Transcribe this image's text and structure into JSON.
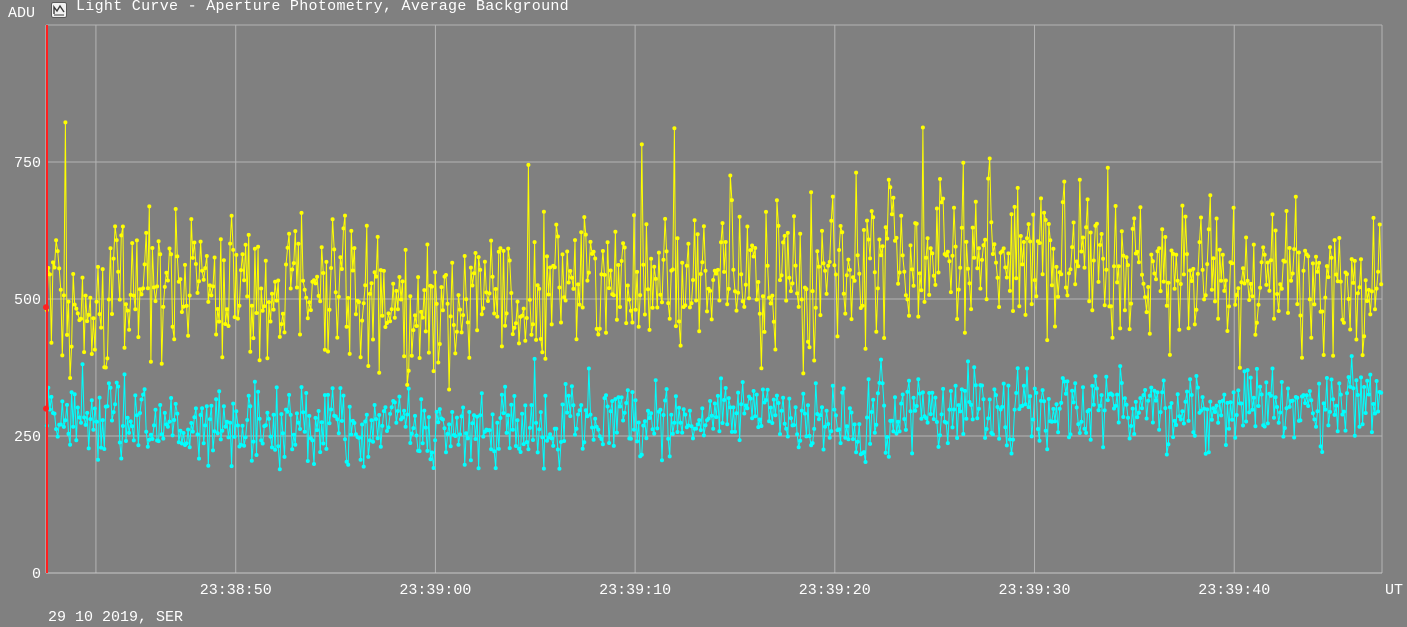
{
  "window": {
    "title": "Light Curve - Aperture Photometry, Average Background",
    "icon": "chart-window-icon"
  },
  "footer": {
    "date_label": "29 10 2019, SER"
  },
  "chart_data": {
    "type": "line",
    "title": "Light Curve - Aperture Photometry, Average Background",
    "ylabel": "ADU",
    "xlabel": "UT",
    "ylim": [
      0,
      1000
    ],
    "xlim": [
      "23:38:40.5",
      "23:39:47.4"
    ],
    "y_ticks": [
      0,
      250,
      500,
      750
    ],
    "y_tick_labels": [
      "0",
      "250",
      "500",
      "750"
    ],
    "x_tick_labels": [
      "23:38:50",
      "23:39:00",
      "23:39:10",
      "23:39:20",
      "23:39:30",
      "23:39:40"
    ],
    "x_ticks_seconds": [
      50,
      60,
      70,
      80,
      90,
      100
    ],
    "x_unlabeled_grid_seconds": [
      43
    ],
    "grid": true,
    "markers": true,
    "background": "#808080",
    "grid_color": "#b4b4b4",
    "cursor": {
      "x_seconds": 40.55,
      "color": "#ff2020",
      "points": [
        485,
        300
      ]
    },
    "series": [
      {
        "color": "#ffff00",
        "mean_approx": 530,
        "range_approx": [
          300,
          890
        ],
        "approx_trend": [
          [
            40.5,
            500
          ],
          [
            50,
            530
          ],
          [
            60,
            500
          ],
          [
            70,
            530
          ],
          [
            80,
            555
          ],
          [
            85,
            590
          ],
          [
            90,
            560
          ],
          [
            100,
            540
          ],
          [
            107.4,
            530
          ]
        ]
      },
      {
        "color": "#00ffff",
        "mean_approx": 280,
        "range_approx": [
          115,
          520
        ],
        "approx_trend": [
          [
            40.5,
            290
          ],
          [
            50,
            260
          ],
          [
            60,
            265
          ],
          [
            70,
            275
          ],
          [
            80,
            285
          ],
          [
            90,
            305
          ],
          [
            100,
            300
          ],
          [
            107.4,
            320
          ]
        ]
      }
    ]
  }
}
